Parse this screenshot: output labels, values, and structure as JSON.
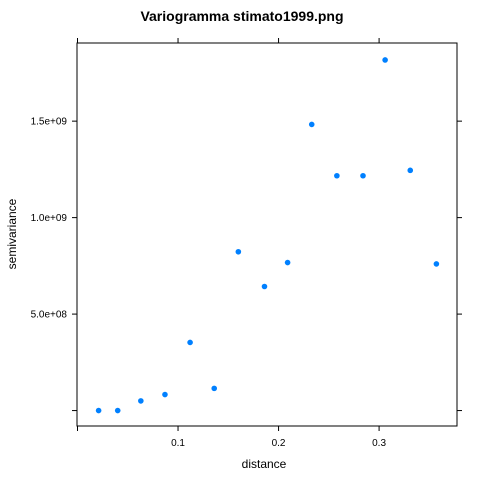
{
  "chart_data": {
    "type": "scatter",
    "title": "Variogramma stimato1999.png",
    "xlabel": "distance",
    "ylabel": "semivariance",
    "xlim": [
      -0.0005,
      0.3775
    ],
    "ylim": [
      -80000000,
      1905000000
    ],
    "x_ticks": [
      {
        "value": 0.1,
        "label": "0.1"
      },
      {
        "value": 0.2,
        "label": "0.2"
      },
      {
        "value": 0.3,
        "label": "0.3"
      }
    ],
    "x_minor_ticks": [
      0.0
    ],
    "y_ticks": [
      {
        "value": 500000000,
        "label": "5.0e+08"
      },
      {
        "value": 1000000000,
        "label": "1.0e+09"
      },
      {
        "value": 1500000000,
        "label": "1.5e+09"
      }
    ],
    "y_minor_ticks": [
      0
    ],
    "point_color": "#0080ff",
    "points": [
      {
        "x": 0.021,
        "y": 0
      },
      {
        "x": 0.04,
        "y": 0
      },
      {
        "x": 0.063,
        "y": 50000000
      },
      {
        "x": 0.087,
        "y": 83000000
      },
      {
        "x": 0.112,
        "y": 353000000
      },
      {
        "x": 0.136,
        "y": 115000000
      },
      {
        "x": 0.16,
        "y": 823000000
      },
      {
        "x": 0.186,
        "y": 643000000
      },
      {
        "x": 0.209,
        "y": 767000000
      },
      {
        "x": 0.233,
        "y": 1483000000
      },
      {
        "x": 0.258,
        "y": 1217000000
      },
      {
        "x": 0.284,
        "y": 1217000000
      },
      {
        "x": 0.306,
        "y": 1817000000
      },
      {
        "x": 0.331,
        "y": 1245000000
      },
      {
        "x": 0.357,
        "y": 760000000
      }
    ]
  }
}
